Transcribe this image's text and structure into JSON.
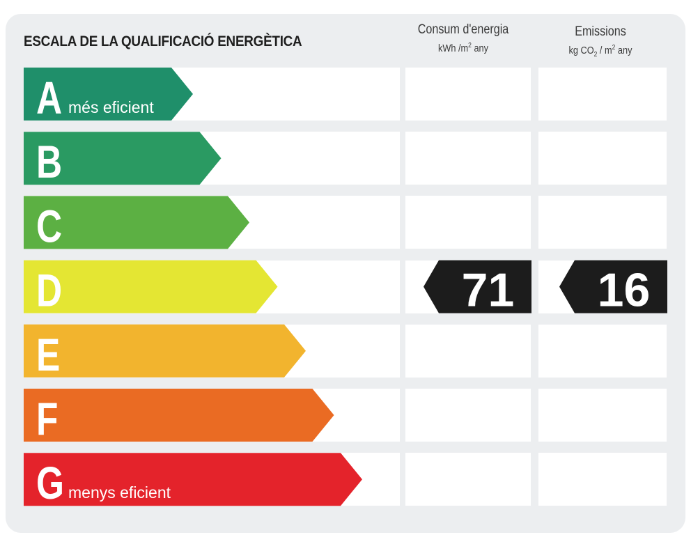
{
  "chart_data": {
    "type": "energy-rating",
    "title": "ESCALA DE LA QUALIFICACIÓ ENERGÈTICA",
    "columns": [
      {
        "label": "Consum d'energia",
        "unit_pre": "kWh /m",
        "unit_sup": "2",
        "unit_post": " any"
      },
      {
        "label": "Emissions",
        "unit_pre": "kg CO",
        "unit_sub": "2",
        "unit_mid": " / m",
        "unit_sup": "2",
        "unit_post": " any"
      }
    ],
    "classes": [
      {
        "letter": "A",
        "caption": "més eficient",
        "color": "#1f8f6a"
      },
      {
        "letter": "B",
        "caption": "",
        "color": "#2a9a62"
      },
      {
        "letter": "C",
        "caption": "",
        "color": "#5cb043"
      },
      {
        "letter": "D",
        "caption": "",
        "color": "#e4e633"
      },
      {
        "letter": "E",
        "caption": "",
        "color": "#f2b42e"
      },
      {
        "letter": "F",
        "caption": "",
        "color": "#ea6b23"
      },
      {
        "letter": "G",
        "caption": "menys eficient",
        "color": "#e4232b"
      }
    ],
    "rating": {
      "class": "D",
      "energy_consumption": "71",
      "emissions": "16"
    }
  }
}
